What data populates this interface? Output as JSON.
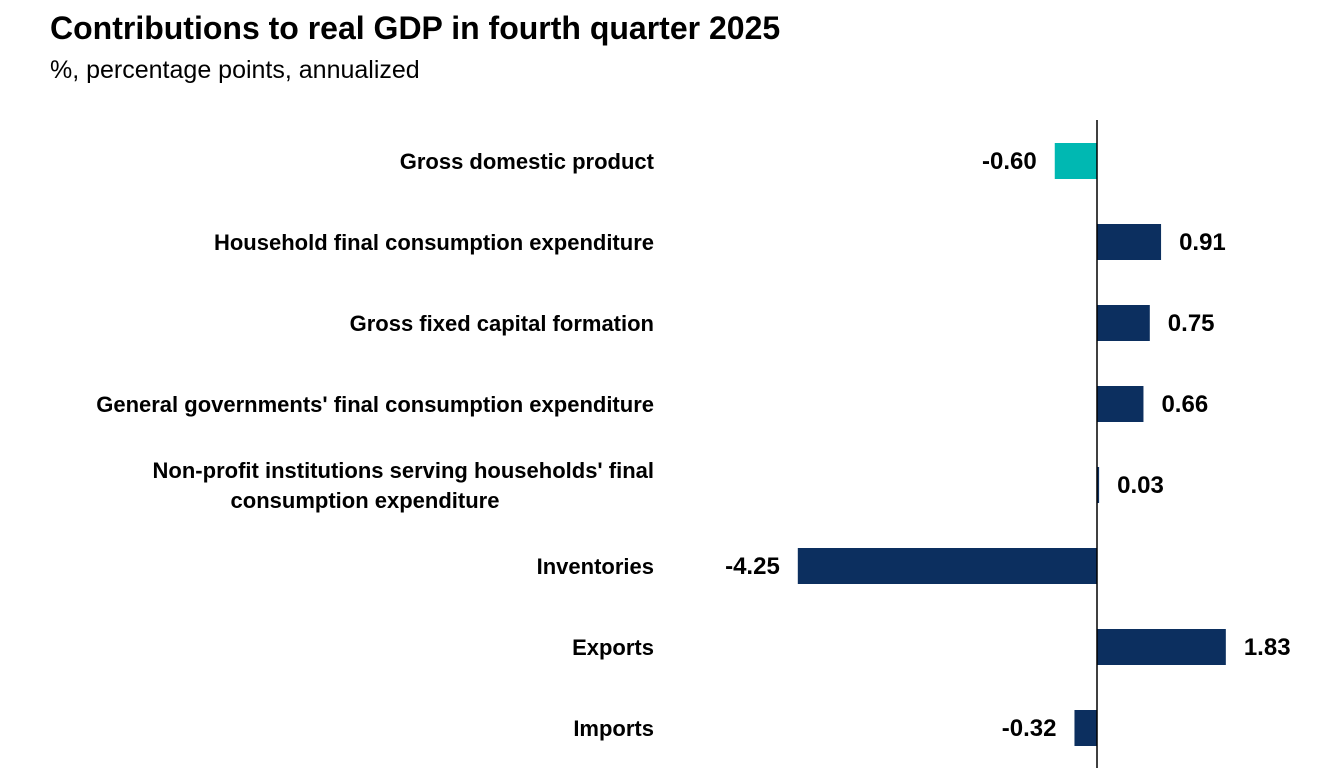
{
  "chart_data": {
    "type": "bar",
    "orientation": "horizontal",
    "title": "Contributions to real GDP in fourth quarter 2025",
    "subtitle": "%, percentage points, annualized",
    "xlabel": "",
    "ylabel": "",
    "xlim": [
      -4.7,
      3.4
    ],
    "grid": false,
    "categories": [
      [
        "Gross domestic product"
      ],
      [
        "Household final consumption expenditure"
      ],
      [
        "Gross fixed capital formation"
      ],
      [
        "General governments' final consumption expenditure"
      ],
      [
        "Non-profit institutions serving households' final",
        "consumption expenditure"
      ],
      [
        "Inventories"
      ],
      [
        "Exports"
      ],
      [
        "Imports"
      ]
    ],
    "values": [
      -0.6,
      0.91,
      0.75,
      0.66,
      0.03,
      -4.25,
      1.83,
      -0.32
    ],
    "value_labels": [
      "-0.60",
      "0.91",
      "0.75",
      "0.66",
      "0.03",
      "-4.25",
      "1.83",
      "-0.32"
    ],
    "colors": {
      "highlight": "#00B8B2",
      "default": "#0C2F5F",
      "axis": "#000000"
    },
    "highlight_index": 0
  }
}
